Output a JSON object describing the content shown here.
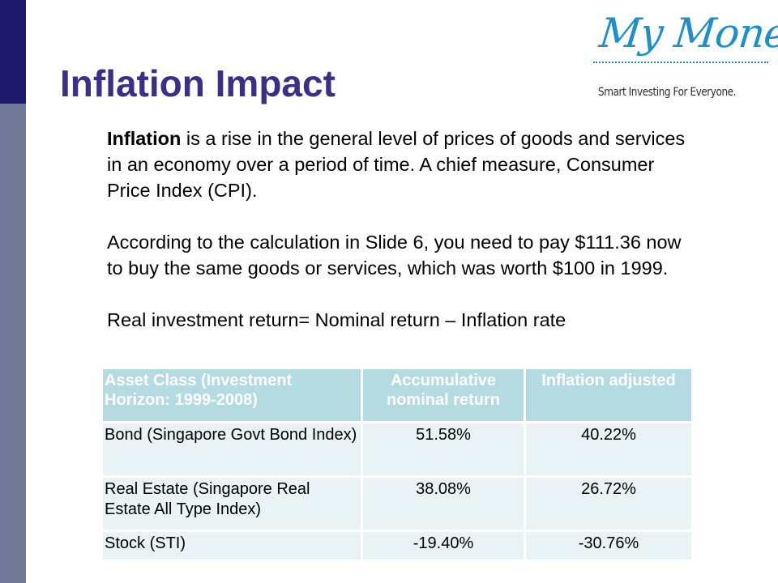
{
  "slide": {
    "title": "Inflation Impact"
  },
  "logo": {
    "script_text": "My Money",
    "tagline": "Smart Investing For Everyone."
  },
  "body": {
    "p1_term": "Inflation",
    "p1_rest": " is a rise in the general level of prices of goods and services in an economy over a period of time. A chief measure, Consumer Price Index (CPI).",
    "p2": "According to the calculation in Slide 6, you need to pay $111.36 now to buy the same goods or services, which was worth $100 in 1999.",
    "p3": "Real investment return= Nominal return – Inflation rate"
  },
  "table": {
    "headers": [
      "Asset Class (Investment Horizon: 1999-2008)",
      "Accumulative nominal return",
      "Inflation adjusted"
    ],
    "rows": [
      {
        "asset": "Bond (Singapore Govt Bond Index)",
        "nominal": "51.58%",
        "adjusted": "40.22%"
      },
      {
        "asset": "Real Estate (Singapore Real Estate All Type Index)",
        "nominal": "38.08%",
        "adjusted": "26.72%"
      },
      {
        "asset": "Stock (STI)",
        "nominal": "-19.40%",
        "adjusted": "-30.76%"
      }
    ]
  },
  "colors": {
    "title": "#3b2f8a",
    "side_bar_top": "#1f1a6b",
    "side_bar_bottom": "#737a99",
    "logo_blue": "#1e8fc9",
    "table_header_bg": "#b5dbe2",
    "table_cell_bg": "#e9f2f4"
  }
}
